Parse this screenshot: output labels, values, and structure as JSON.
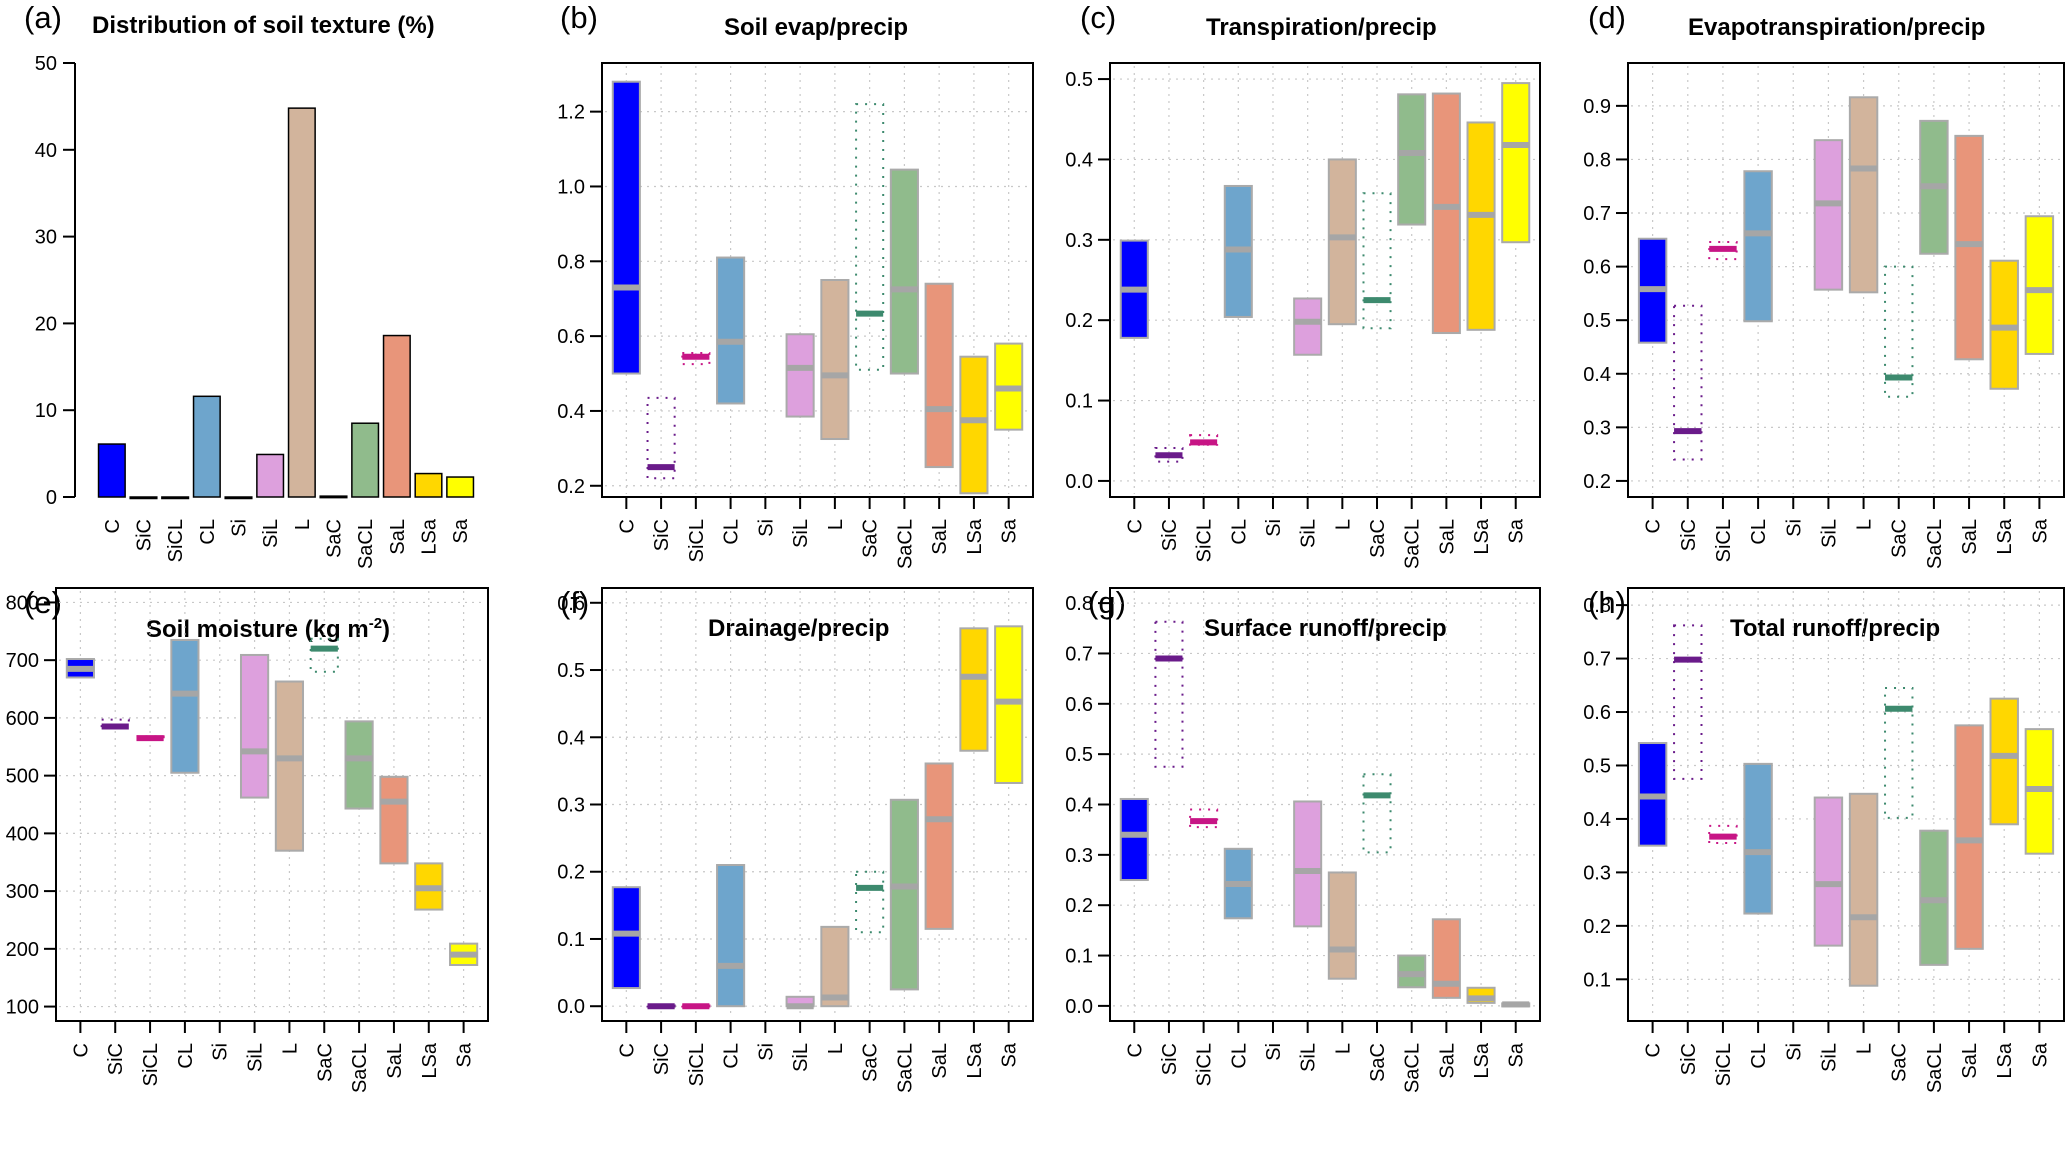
{
  "figure": {
    "categories": [
      "C",
      "SiC",
      "SiCL",
      "CL",
      "Si",
      "SiL",
      "L",
      "SaC",
      "SaCL",
      "SaL",
      "LSa",
      "Sa"
    ],
    "colors": {
      "C": "#0000ff",
      "SiC": "#6a1b8a",
      "SiCL": "#c71585",
      "CL": "#6ea5cc",
      "Si": "#cccccc",
      "SiL": "#dda0dd",
      "L": "#d2b49c",
      "SaC": "#3d8a6e",
      "SaCL": "#90bb8c",
      "SaL": "#e8957a",
      "LSa": "#ffd700",
      "Sa": "#ffff00"
    },
    "box_border_color": "#aaaaaa",
    "median_color": "#a6a6a6",
    "dotted_categories": [
      "SiC",
      "SiCL",
      "SaC"
    ]
  },
  "chart_data": [
    {
      "id": "a",
      "letter": "(a)",
      "type": "bar",
      "title": "Distribution of soil texture (%)",
      "xlabel": "",
      "ylabel": "",
      "ylim": [
        0,
        50
      ],
      "yticks": [
        0,
        10,
        20,
        30,
        40,
        50
      ],
      "ytick_labels": [
        "0",
        "10",
        "20",
        "30",
        "40",
        "50"
      ],
      "grid": false,
      "categories": [
        "C",
        "SiC",
        "SiCL",
        "CL",
        "Si",
        "SiL",
        "L",
        "SaC",
        "SaCL",
        "SaL",
        "LSa",
        "Sa"
      ],
      "values": [
        6.1,
        0,
        0,
        11.6,
        0,
        4.9,
        44.8,
        0.1,
        8.5,
        18.6,
        2.7,
        2.3
      ]
    },
    {
      "id": "b",
      "letter": "(b)",
      "type": "box-range",
      "title": "Soil evap/precip",
      "ylim": [
        0.17,
        1.33
      ],
      "yticks": [
        0.2,
        0.4,
        0.6,
        0.8,
        1.0,
        1.2
      ],
      "ytick_labels": [
        "0.2",
        "0.4",
        "0.6",
        "0.8",
        "1.0",
        "1.2"
      ],
      "grid": true,
      "categories": [
        "C",
        "SiC",
        "SiCL",
        "CL",
        "Si",
        "SiL",
        "L",
        "SaC",
        "SaCL",
        "SaL",
        "LSa",
        "Sa"
      ],
      "series": [
        {
          "name": "upper",
          "values": [
            1.28,
            0.435,
            0.555,
            0.81,
            null,
            0.605,
            0.75,
            1.22,
            1.045,
            0.74,
            0.545,
            0.58
          ]
        },
        {
          "name": "lower",
          "values": [
            0.5,
            0.22,
            0.525,
            0.42,
            null,
            0.385,
            0.325,
            0.51,
            0.5,
            0.25,
            0.18,
            0.35
          ]
        },
        {
          "name": "median",
          "values": [
            0.73,
            0.25,
            0.545,
            0.585,
            null,
            0.515,
            0.495,
            0.66,
            0.725,
            0.405,
            0.375,
            0.46
          ]
        }
      ]
    },
    {
      "id": "c",
      "letter": "(c)",
      "type": "box-range",
      "title": "Transpiration/precip",
      "ylim": [
        -0.02,
        0.52
      ],
      "yticks": [
        0.0,
        0.1,
        0.2,
        0.3,
        0.4,
        0.5
      ],
      "ytick_labels": [
        "0.0",
        "0.1",
        "0.2",
        "0.3",
        "0.4",
        "0.5"
      ],
      "grid": true,
      "categories": [
        "C",
        "SiC",
        "SiCL",
        "CL",
        "Si",
        "SiL",
        "L",
        "SaC",
        "SaCL",
        "SaL",
        "LSa",
        "Sa"
      ],
      "series": [
        {
          "name": "upper",
          "values": [
            0.299,
            0.041,
            0.057,
            0.367,
            null,
            0.227,
            0.4,
            0.358,
            0.481,
            0.482,
            0.446,
            0.495
          ]
        },
        {
          "name": "lower",
          "values": [
            0.178,
            0.024,
            0.045,
            0.204,
            null,
            0.157,
            0.195,
            0.19,
            0.319,
            0.184,
            0.188,
            0.297
          ]
        },
        {
          "name": "median",
          "values": [
            0.238,
            0.032,
            0.048,
            0.288,
            null,
            0.198,
            0.303,
            0.225,
            0.408,
            0.341,
            0.331,
            0.418
          ]
        }
      ]
    },
    {
      "id": "d",
      "letter": "(d)",
      "type": "box-range",
      "title": "Evapotranspiration/precip",
      "ylim": [
        0.17,
        0.98
      ],
      "yticks": [
        0.2,
        0.3,
        0.4,
        0.5,
        0.6,
        0.7,
        0.8,
        0.9
      ],
      "ytick_labels": [
        "0.2",
        "0.3",
        "0.4",
        "0.5",
        "0.6",
        "0.7",
        "0.8",
        "0.9"
      ],
      "grid": true,
      "categories": [
        "C",
        "SiC",
        "SiCL",
        "CL",
        "Si",
        "SiL",
        "L",
        "SaC",
        "SaCL",
        "SaL",
        "LSa",
        "Sa"
      ],
      "series": [
        {
          "name": "upper",
          "values": [
            0.652,
            0.527,
            0.646,
            0.778,
            null,
            0.836,
            0.916,
            0.6,
            0.872,
            0.844,
            0.611,
            0.694
          ]
        },
        {
          "name": "lower",
          "values": [
            0.458,
            0.24,
            0.614,
            0.498,
            null,
            0.557,
            0.552,
            0.357,
            0.624,
            0.427,
            0.372,
            0.437
          ]
        },
        {
          "name": "median",
          "values": [
            0.558,
            0.293,
            0.633,
            0.662,
            null,
            0.718,
            0.783,
            0.393,
            0.75,
            0.642,
            0.486,
            0.556
          ]
        }
      ]
    },
    {
      "id": "e",
      "letter": "(e)",
      "type": "box-range",
      "title": "Soil moisture (kg m",
      "title_superscript": "-2",
      "title_suffix": ")",
      "ylim": [
        75,
        825
      ],
      "yticks": [
        100,
        200,
        300,
        400,
        500,
        600,
        700,
        800
      ],
      "ytick_labels": [
        "100",
        "200",
        "300",
        "400",
        "500",
        "600",
        "700",
        "800"
      ],
      "grid": true,
      "categories": [
        "C",
        "SiC",
        "SiCL",
        "CL",
        "Si",
        "SiL",
        "L",
        "SaC",
        "SaCL",
        "SaL",
        "LSa",
        "Sa"
      ],
      "series": [
        {
          "name": "upper",
          "values": [
            702,
            597,
            568,
            735,
            null,
            709,
            663,
            737,
            594,
            498,
            348,
            209
          ]
        },
        {
          "name": "lower",
          "values": [
            670,
            583,
            562,
            505,
            null,
            462,
            370,
            680,
            443,
            348,
            268,
            172
          ]
        },
        {
          "name": "median",
          "values": [
            685,
            585,
            565,
            642,
            null,
            542,
            530,
            720,
            530,
            455,
            305,
            190
          ]
        }
      ]
    },
    {
      "id": "f",
      "letter": "(f)",
      "type": "box-range",
      "title": "Drainage/precip",
      "ylim": [
        -0.022,
        0.622
      ],
      "yticks": [
        0.0,
        0.1,
        0.2,
        0.3,
        0.4,
        0.5,
        0.6
      ],
      "ytick_labels": [
        "0.0",
        "0.1",
        "0.2",
        "0.3",
        "0.4",
        "0.5",
        "0.6"
      ],
      "grid": true,
      "categories": [
        "C",
        "SiC",
        "SiCL",
        "CL",
        "Si",
        "SiL",
        "L",
        "SaC",
        "SaCL",
        "SaL",
        "LSa",
        "Sa"
      ],
      "series": [
        {
          "name": "upper",
          "values": [
            0.177,
            0.001,
            0.001,
            0.21,
            null,
            0.014,
            0.118,
            0.2,
            0.307,
            0.361,
            0.562,
            0.565
          ]
        },
        {
          "name": "lower",
          "values": [
            0.027,
            0.0,
            0.0,
            0.0,
            null,
            0.0,
            0.0,
            0.11,
            0.025,
            0.115,
            0.38,
            0.332
          ]
        },
        {
          "name": "median",
          "values": [
            0.108,
            0.0,
            0.0,
            0.06,
            null,
            0.0,
            0.013,
            0.176,
            0.178,
            0.278,
            0.49,
            0.453
          ]
        }
      ]
    },
    {
      "id": "g",
      "letter": "(g)",
      "type": "box-range",
      "title": "Surface runoff/precip",
      "ylim": [
        -0.03,
        0.83
      ],
      "yticks": [
        0.0,
        0.1,
        0.2,
        0.3,
        0.4,
        0.5,
        0.6,
        0.7,
        0.8
      ],
      "ytick_labels": [
        "0.0",
        "0.1",
        "0.2",
        "0.3",
        "0.4",
        "0.5",
        "0.6",
        "0.7",
        "0.8"
      ],
      "grid": true,
      "categories": [
        "C",
        "SiC",
        "SiCL",
        "CL",
        "Si",
        "SiL",
        "L",
        "SaC",
        "SaCL",
        "SaL",
        "LSa",
        "Sa"
      ],
      "series": [
        {
          "name": "upper",
          "values": [
            0.411,
            0.763,
            0.39,
            0.312,
            null,
            0.406,
            0.265,
            0.46,
            0.1,
            0.172,
            0.036,
            0.005
          ]
        },
        {
          "name": "lower",
          "values": [
            0.25,
            0.475,
            0.355,
            0.174,
            null,
            0.158,
            0.054,
            0.305,
            0.037,
            0.016,
            0.006,
            0.002
          ]
        },
        {
          "name": "median",
          "values": [
            0.34,
            0.69,
            0.367,
            0.242,
            null,
            0.268,
            0.112,
            0.418,
            0.063,
            0.044,
            0.015,
            0.003
          ]
        }
      ]
    },
    {
      "id": "h",
      "letter": "(h)",
      "type": "box-range",
      "title": "Total runoff/precip",
      "ylim": [
        0.022,
        0.832
      ],
      "yticks": [
        0.1,
        0.2,
        0.3,
        0.4,
        0.5,
        0.6,
        0.7,
        0.8
      ],
      "ytick_labels": [
        "0.1",
        "0.2",
        "0.3",
        "0.4",
        "0.5",
        "0.6",
        "0.7",
        "0.8"
      ],
      "grid": true,
      "categories": [
        "C",
        "SiC",
        "SiCL",
        "CL",
        "Si",
        "SiL",
        "L",
        "SaC",
        "SaCL",
        "SaL",
        "LSa",
        "Sa"
      ],
      "series": [
        {
          "name": "upper",
          "values": [
            0.542,
            0.762,
            0.387,
            0.503,
            null,
            0.44,
            0.447,
            0.645,
            0.378,
            0.575,
            0.625,
            0.568
          ]
        },
        {
          "name": "lower",
          "values": [
            0.35,
            0.475,
            0.355,
            0.223,
            null,
            0.163,
            0.088,
            0.402,
            0.127,
            0.157,
            0.39,
            0.335
          ]
        },
        {
          "name": "median",
          "values": [
            0.442,
            0.698,
            0.367,
            0.338,
            null,
            0.278,
            0.216,
            0.606,
            0.248,
            0.36,
            0.518,
            0.456
          ]
        }
      ]
    }
  ]
}
